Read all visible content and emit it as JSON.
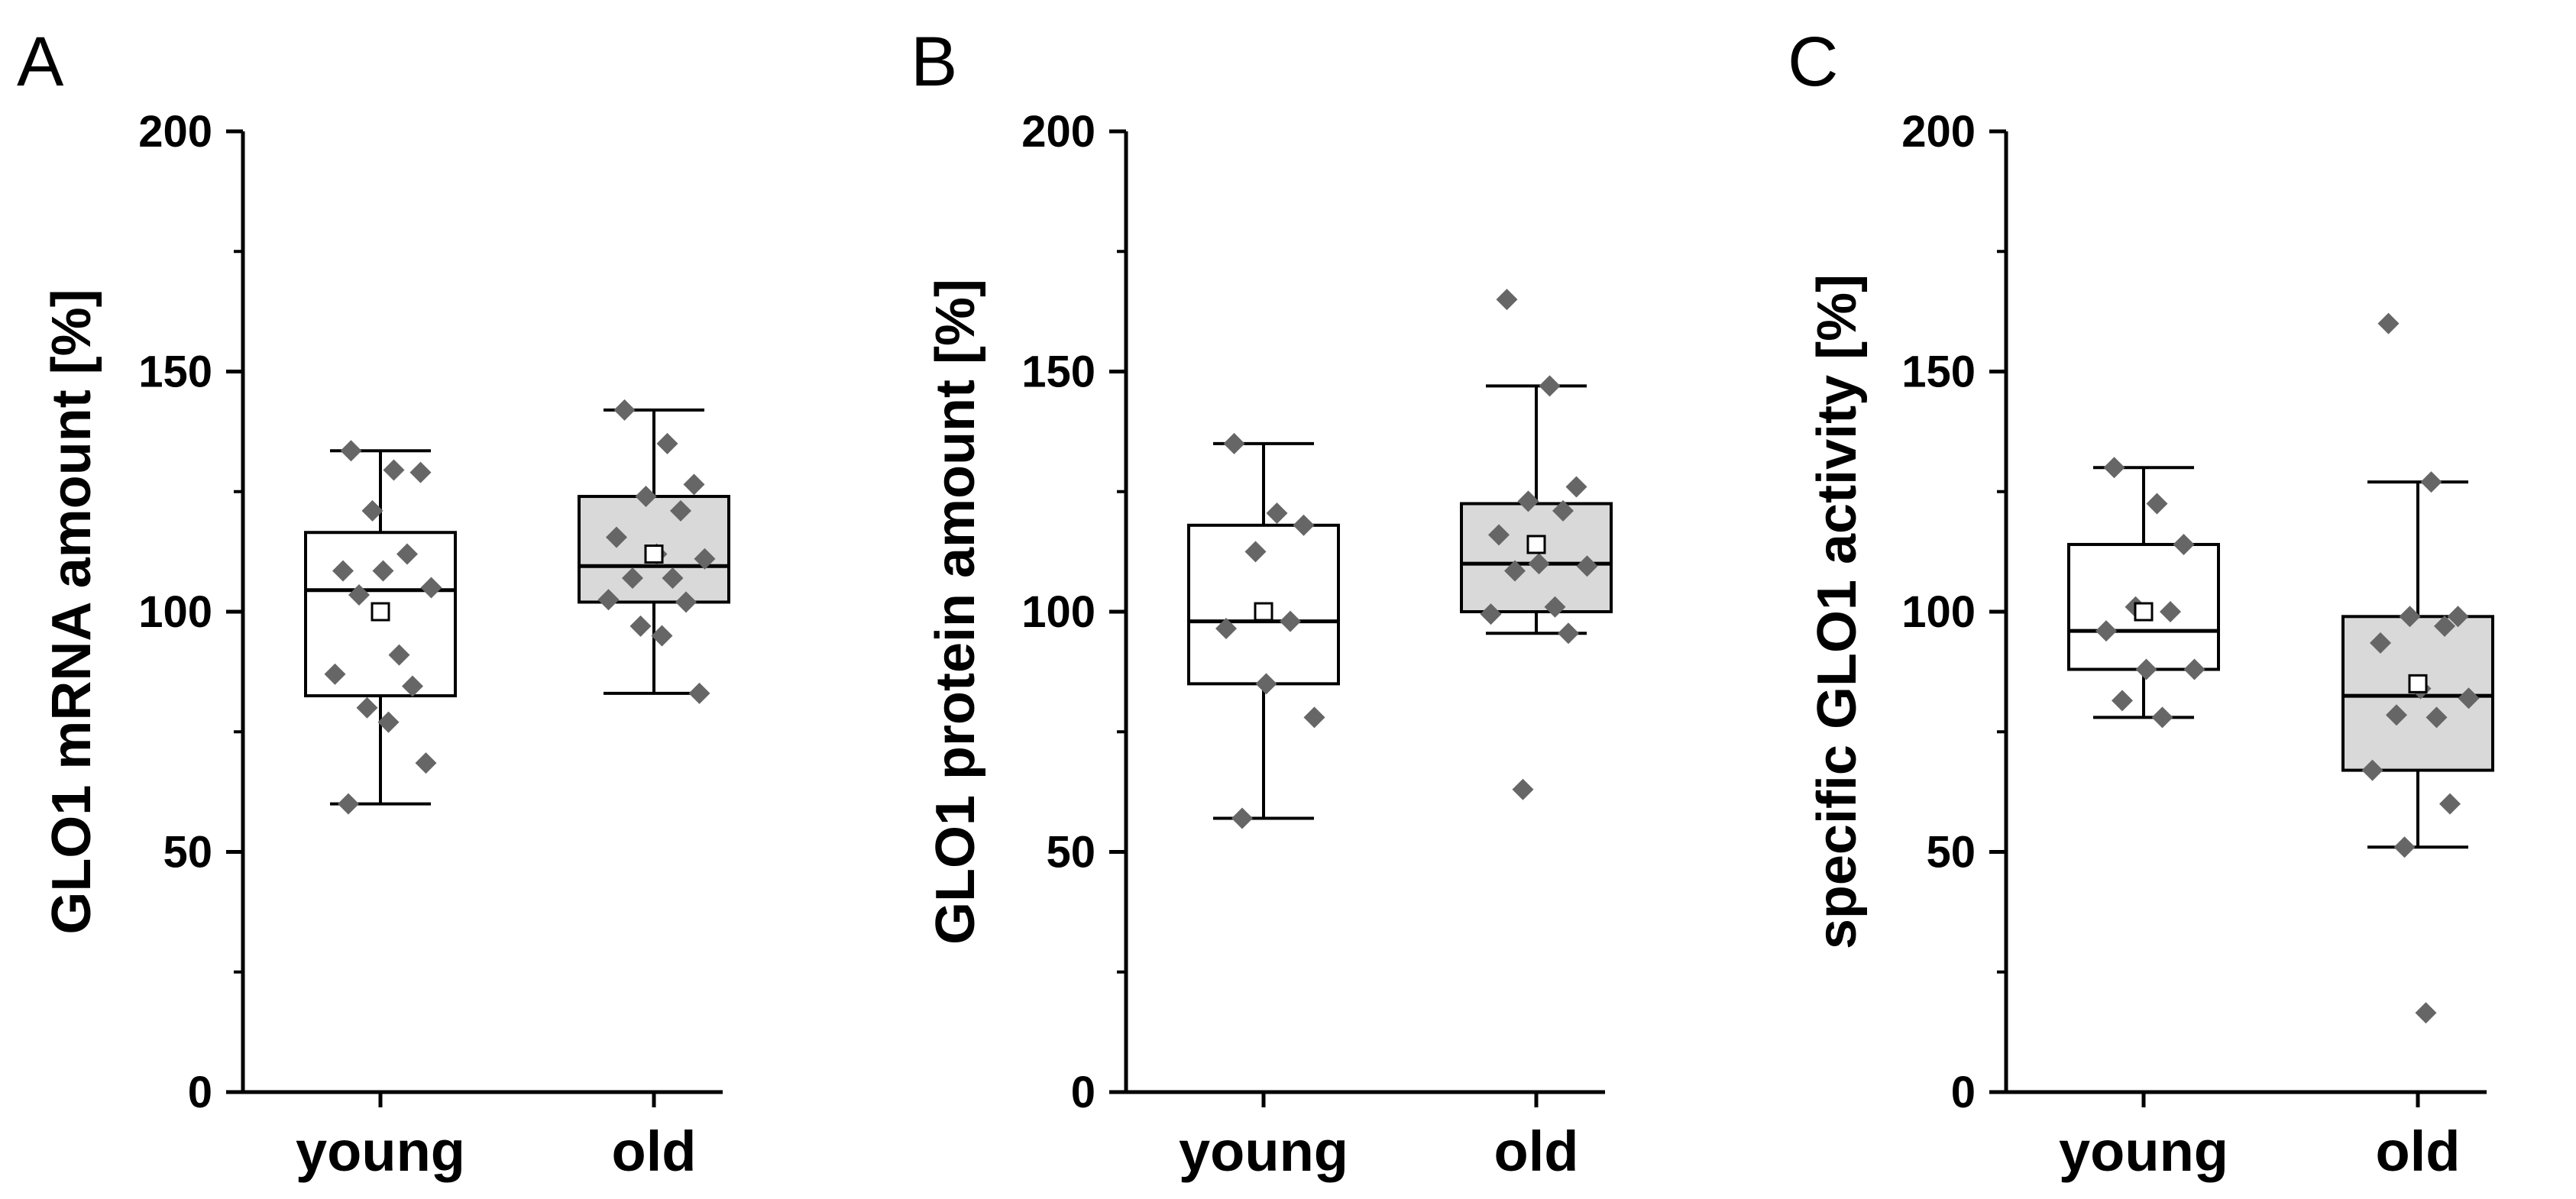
{
  "chart_data": [
    {
      "type": "box",
      "panel_label": "A",
      "ylabel": "GLO1 mRNA amount [%]",
      "ylim": [
        0,
        200
      ],
      "yticks": [
        0,
        50,
        100,
        150,
        200
      ],
      "categories": [
        "young",
        "old"
      ],
      "colors": {
        "young_fill": "#ffffff",
        "old_fill": "#d9d9d9",
        "point": "#666666",
        "line": "#000000"
      },
      "groups": [
        {
          "name": "young",
          "whisker_low": 60,
          "q1": 82.5,
          "median": 104.5,
          "q3": 116.5,
          "whisker_high": 133.5,
          "mean": 100,
          "points": [
            133.5,
            129.5,
            129,
            121,
            112,
            108.5,
            108.5,
            105,
            103.5,
            91,
            87,
            84.5,
            80,
            77,
            68.5,
            60
          ]
        },
        {
          "name": "old",
          "whisker_low": 83,
          "q1": 102,
          "median": 109.5,
          "q3": 124,
          "whisker_high": 142,
          "mean": 112,
          "points": [
            142,
            135,
            126.5,
            124,
            121,
            115.5,
            112,
            111,
            107,
            107,
            102.5,
            102,
            97,
            95,
            83
          ]
        }
      ]
    },
    {
      "type": "box",
      "panel_label": "B",
      "ylabel": "GLO1 protein amount [%]",
      "ylim": [
        0,
        200
      ],
      "yticks": [
        0,
        50,
        100,
        150,
        200
      ],
      "categories": [
        "young",
        "old"
      ],
      "colors": {
        "young_fill": "#ffffff",
        "old_fill": "#d9d9d9",
        "point": "#666666",
        "line": "#000000"
      },
      "groups": [
        {
          "name": "young",
          "whisker_low": 57,
          "q1": 85,
          "median": 98,
          "q3": 118,
          "whisker_high": 135,
          "mean": 100,
          "points": [
            135,
            120.5,
            118,
            112.5,
            98,
            96.5,
            85,
            78,
            57
          ]
        },
        {
          "name": "old",
          "whisker_low": 95.5,
          "q1": 100,
          "median": 110,
          "q3": 122.5,
          "whisker_high": 147,
          "mean": 114,
          "points": [
            165,
            147,
            126,
            123,
            121,
            116,
            110,
            109.5,
            108.5,
            101,
            99.5,
            95.5,
            63
          ]
        }
      ]
    },
    {
      "type": "box",
      "panel_label": "C",
      "ylabel": "specific GLO1 activity [%]",
      "ylim": [
        0,
        200
      ],
      "yticks": [
        0,
        50,
        100,
        150,
        200
      ],
      "categories": [
        "young",
        "old"
      ],
      "colors": {
        "young_fill": "#ffffff",
        "old_fill": "#d9d9d9",
        "point": "#666666",
        "line": "#000000"
      },
      "groups": [
        {
          "name": "young",
          "whisker_low": 78,
          "q1": 88,
          "median": 96,
          "q3": 114,
          "whisker_high": 130,
          "mean": 100,
          "points": [
            130,
            122.5,
            114,
            101,
            100,
            96,
            88,
            88,
            81.5,
            78
          ]
        },
        {
          "name": "old",
          "whisker_low": 51,
          "q1": 67,
          "median": 82.5,
          "q3": 99,
          "whisker_high": 127,
          "mean": 85,
          "points": [
            160,
            127,
            99,
            99,
            97,
            93.5,
            84,
            82,
            78.5,
            78,
            67,
            60,
            51,
            16.5
          ]
        }
      ]
    }
  ]
}
